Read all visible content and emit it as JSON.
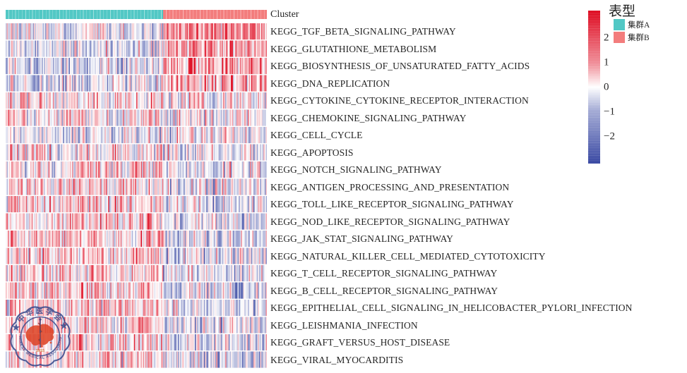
{
  "figure": {
    "annotation_label": "Cluster",
    "legend": {
      "title": "表型",
      "groups": [
        {
          "label": "集群A",
          "color": "#52C8C5"
        },
        {
          "label": "集群B",
          "color": "#F37D7D"
        }
      ],
      "colorbar": {
        "ticks": [
          {
            "label": "2",
            "value": 2
          },
          {
            "label": "1",
            "value": 1
          },
          {
            "label": "0",
            "value": 0
          },
          {
            "label": "−1",
            "value": -1
          },
          {
            "label": "−2",
            "value": -2
          }
        ],
        "vmax": 3.1,
        "vmin": -3.1,
        "top_color": "#DE0B21",
        "mid_color": "#FFFFFF",
        "bottom_color": "#3A49A3"
      }
    }
  },
  "chart_data": {
    "type": "heatmap",
    "title": "",
    "xlabel": "",
    "ylabel": "",
    "rows": [
      "KEGG_TGF_BETA_SIGNALING_PATHWAY",
      "KEGG_GLUTATHIONE_METABOLISM",
      "KEGG_BIOSYNTHESIS_OF_UNSATURATED_FATTY_ACIDS",
      "KEGG_DNA_REPLICATION",
      "KEGG_CYTOKINE_CYTOKINE_RECEPTOR_INTERACTION",
      "KEGG_CHEMOKINE_SIGNALING_PATHWAY",
      "KEGG_CELL_CYCLE",
      "KEGG_APOPTOSIS",
      "KEGG_NOTCH_SIGNALING_PATHWAY",
      "KEGG_ANTIGEN_PROCESSING_AND_PRESENTATION",
      "KEGG_TOLL_LIKE_RECEPTOR_SIGNALING_PATHWAY",
      "KEGG_NOD_LIKE_RECEPTOR_SIGNALING_PATHWAY",
      "KEGG_JAK_STAT_SIGNALING_PATHWAY",
      "KEGG_NATURAL_KILLER_CELL_MEDIATED_CYTOTOXICITY",
      "KEGG_T_CELL_RECEPTOR_SIGNALING_PATHWAY",
      "KEGG_B_CELL_RECEPTOR_SIGNALING_PATHWAY",
      "KEGG_EPITHELIAL_CELL_SIGNALING_IN_HELICOBACTER_PYLORI_INFECTION",
      "KEGG_LEISHMANIA_INFECTION",
      "KEGG_GRAFT_VERSUS_HOST_DISEASE",
      "KEGG_VIRAL_MYOCARDITIS"
    ],
    "clusters": [
      {
        "name": "集群A",
        "color": "#52C8C5",
        "fraction": 0.603
      },
      {
        "name": "集群B",
        "color": "#F37D7D",
        "fraction": 0.397
      }
    ],
    "n_columns": 232,
    "n_cluster_a": 140,
    "value_range": [
      -3,
      3
    ],
    "colormap": {
      "negative": "#3A49A3",
      "zero": "#FFFFFF",
      "positive": "#DE0B21"
    },
    "row_cluster_means": [
      [
        -0.35,
        1.25
      ],
      [
        -0.3,
        0.9
      ],
      [
        -0.5,
        1.1
      ],
      [
        -0.4,
        1.0
      ],
      [
        0.3,
        -0.1
      ],
      [
        0.3,
        0.0
      ],
      [
        -0.4,
        -0.1
      ],
      [
        0.3,
        -0.2
      ],
      [
        0.2,
        -0.3
      ],
      [
        0.5,
        -0.3
      ],
      [
        0.6,
        -0.5
      ],
      [
        0.6,
        -0.5
      ],
      [
        0.5,
        -0.5
      ],
      [
        0.6,
        -0.55
      ],
      [
        0.6,
        -0.5
      ],
      [
        0.5,
        -0.5
      ],
      [
        0.5,
        -0.4
      ],
      [
        0.6,
        -0.5
      ],
      [
        0.5,
        -0.5
      ],
      [
        0.5,
        -0.4
      ]
    ]
  },
  "watermark": {
    "cn_text": "中华医学会",
    "star": "★",
    "en_text": "CHINESE MEDICAL ASSOCIATION",
    "year": "1915"
  }
}
